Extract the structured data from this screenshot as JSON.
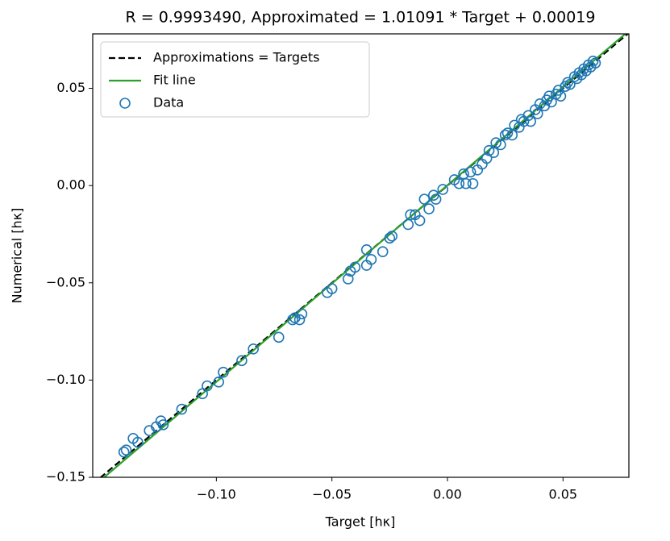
{
  "chart_data": {
    "type": "scatter",
    "title": "R = 0.9993490, Approximated = 1.01091 * Target + 0.00019",
    "x_label": "Target [hκ]",
    "y_label": "Numerical [hκ]",
    "xlim": [
      -0.1535,
      0.0785
    ],
    "ylim": [
      -0.15,
      0.078
    ],
    "xticks": [
      {
        "value": -0.1,
        "label": "−0.10"
      },
      {
        "value": -0.05,
        "label": "−0.05"
      },
      {
        "value": 0,
        "label": "0.00"
      },
      0.05
    ],
    "yticks": [
      {
        "value": -0.15,
        "label": "−0.15"
      },
      {
        "value": -0.1,
        "label": "−0.10"
      },
      {
        "value": -0.05,
        "label": "−0.05"
      },
      {
        "value": 0,
        "label": "0.00"
      },
      0.05
    ],
    "legend": "upper left",
    "series": [
      {
        "name": "Approximations = Targets",
        "type": "line",
        "linestyle": "dashed",
        "color": "#000000",
        "x": [
          -0.1535,
          0.0785
        ],
        "values": [
          -0.1535,
          0.0785
        ]
      },
      {
        "name": "Fit line",
        "type": "line",
        "linestyle": "solid",
        "color": "#2ca02c",
        "x": [
          -0.1535,
          0.0785
        ],
        "values": [
          -0.15499,
          0.07955
        ]
      },
      {
        "name": "Data",
        "type": "scatter",
        "color": "#1f77b4",
        "x": [
          -0.14,
          -0.139,
          -0.136,
          -0.134,
          -0.129,
          -0.126,
          -0.124,
          -0.123,
          -0.115,
          -0.106,
          -0.104,
          -0.099,
          -0.097,
          -0.089,
          -0.084,
          -0.073,
          -0.067,
          -0.066,
          -0.064,
          -0.063,
          -0.052,
          -0.05,
          -0.043,
          -0.042,
          -0.04,
          -0.035,
          -0.035,
          -0.033,
          -0.028,
          -0.025,
          -0.024,
          -0.017,
          -0.016,
          -0.014,
          -0.012,
          -0.01,
          -0.008,
          -0.006,
          -0.005,
          -0.002,
          0.003,
          0.005,
          0.007,
          0.008,
          0.01,
          0.011,
          0.013,
          0.015,
          0.017,
          0.018,
          0.02,
          0.021,
          0.023,
          0.025,
          0.026,
          0.028,
          0.029,
          0.031,
          0.032,
          0.033,
          0.035,
          0.036,
          0.038,
          0.039,
          0.04,
          0.042,
          0.043,
          0.044,
          0.045,
          0.047,
          0.048,
          0.049,
          0.051,
          0.052,
          0.053,
          0.055,
          0.056,
          0.057,
          0.058,
          0.059,
          0.06,
          0.061,
          0.062,
          0.063,
          0.064
        ],
        "values": [
          -0.137,
          -0.136,
          -0.13,
          -0.132,
          -0.126,
          -0.124,
          -0.121,
          -0.123,
          -0.115,
          -0.107,
          -0.103,
          -0.101,
          -0.096,
          -0.09,
          -0.084,
          -0.078,
          -0.069,
          -0.068,
          -0.069,
          -0.066,
          -0.055,
          -0.053,
          -0.048,
          -0.044,
          -0.042,
          -0.041,
          -0.033,
          -0.038,
          -0.034,
          -0.027,
          -0.026,
          -0.02,
          -0.015,
          -0.015,
          -0.018,
          -0.007,
          -0.012,
          -0.005,
          -0.007,
          -0.002,
          0.003,
          0.001,
          0.006,
          0.001,
          0.007,
          0.001,
          0.008,
          0.011,
          0.014,
          0.018,
          0.017,
          0.022,
          0.021,
          0.026,
          0.027,
          0.026,
          0.031,
          0.03,
          0.034,
          0.033,
          0.036,
          0.033,
          0.039,
          0.037,
          0.042,
          0.041,
          0.044,
          0.046,
          0.043,
          0.047,
          0.049,
          0.046,
          0.051,
          0.053,
          0.052,
          0.056,
          0.055,
          0.058,
          0.057,
          0.06,
          0.059,
          0.062,
          0.061,
          0.064,
          0.063
        ]
      }
    ]
  }
}
